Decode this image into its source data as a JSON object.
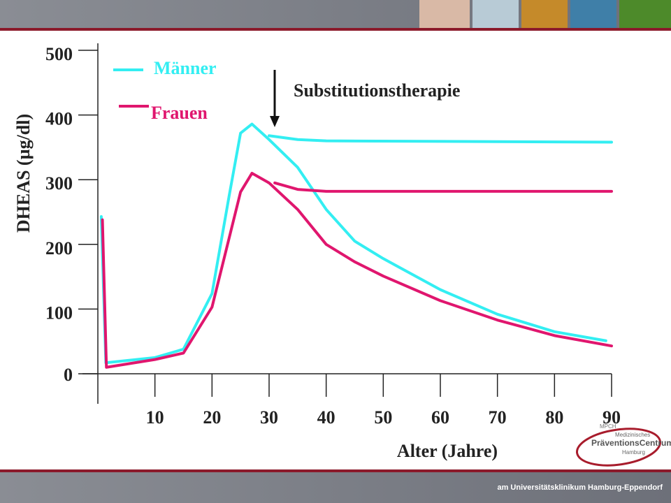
{
  "chart_data": {
    "type": "line",
    "xlabel": "Alter (Jahre)",
    "ylabel": "DHEAS (µg/dl)",
    "annotation": "Substitutionstherapie",
    "xlim": [
      0,
      90
    ],
    "xticks": [
      10,
      20,
      30,
      40,
      50,
      60,
      70,
      80,
      90
    ],
    "ylim": [
      0,
      500
    ],
    "yticks": [
      0,
      100,
      200,
      300,
      400,
      500
    ],
    "series": [
      {
        "name": "Männer",
        "color": "#33eef2",
        "x": [
          0.6,
          1.4,
          10,
          15,
          20,
          23,
          25,
          27,
          30,
          35,
          40,
          45,
          50,
          60,
          70,
          80,
          89
        ],
        "values": [
          243,
          17,
          25,
          38,
          124,
          275,
          372,
          386,
          362,
          319,
          254,
          205,
          178,
          130,
          92,
          65,
          51
        ]
      },
      {
        "name": "Frauen",
        "color": "#e0166e",
        "x": [
          0.8,
          1.5,
          10,
          15,
          20,
          25,
          27,
          30,
          35,
          40,
          45,
          50,
          60,
          70,
          80,
          90
        ],
        "values": [
          238,
          10,
          22,
          32,
          103,
          281,
          310,
          295,
          254,
          200,
          173,
          151,
          113,
          83,
          59,
          43
        ]
      },
      {
        "color": "#33eef2",
        "x": [
          30,
          35,
          40,
          90
        ],
        "values": [
          368,
          362,
          360,
          358
        ]
      },
      {
        "color": "#e0166e",
        "x": [
          31,
          35,
          40,
          90
        ],
        "values": [
          295,
          285,
          282,
          282
        ]
      }
    ]
  },
  "logo": {
    "abbr": "MPCH",
    "line1": "Medizinisches",
    "line2": "PräventionsCentrum",
    "line3": "Hamburg"
  },
  "footer": "am Universitätsklinikum Hamburg-Eppendorf"
}
